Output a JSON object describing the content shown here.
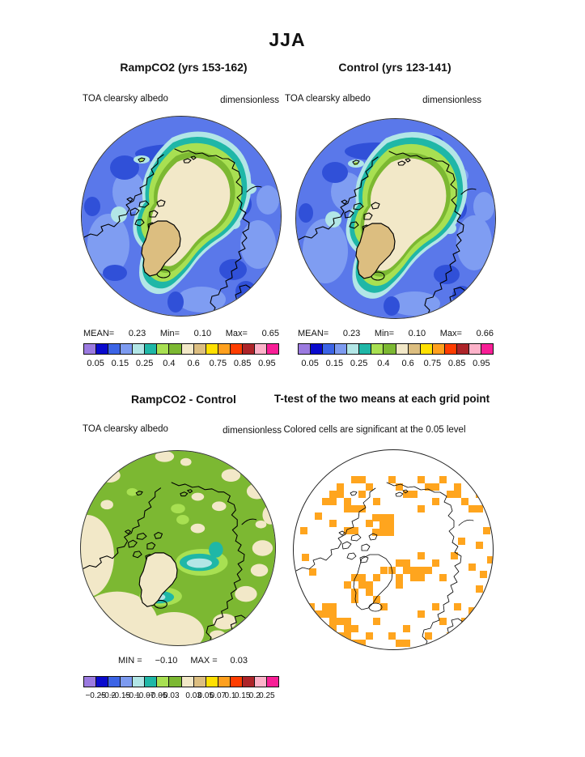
{
  "title": "JJA",
  "panels": {
    "ramp": {
      "title": "RampCO2 (yrs 153-162)",
      "var_label": "TOA clearsky albedo",
      "units": "dimensionless",
      "stats": [
        {
          "k": "MEAN=",
          "v": "0.23"
        },
        {
          "k": "Min=",
          "v": "0.10"
        },
        {
          "k": "Max=",
          "v": "0.65"
        }
      ]
    },
    "control": {
      "title": "Control (yrs 123-141)",
      "var_label": "TOA clearsky albedo",
      "units": "dimensionless",
      "stats": [
        {
          "k": "MEAN=",
          "v": "0.23"
        },
        {
          "k": "Min=",
          "v": "0.10"
        },
        {
          "k": "Max=",
          "v": "0.66"
        }
      ]
    },
    "diff": {
      "title": "RampCO2 - Control",
      "var_label": "TOA clearsky albedo",
      "units": "dimensionless",
      "stats": [
        {
          "k": "MIN =",
          "v": "−0.10"
        },
        {
          "k": "MAX =",
          "v": "0.03"
        }
      ]
    },
    "ttest": {
      "title": "T-test of the two means at each grid point",
      "note": "Colored cells are significant at the 0.05 level"
    }
  },
  "colorbars": {
    "albedo": {
      "colors": [
        "#9b7ae0",
        "#0a0acd",
        "#3c64e6",
        "#7d9bf0",
        "#b2e6e6",
        "#1fb7a7",
        "#a8e052",
        "#7cb832",
        "#f2e8c8",
        "#dcbe80",
        "#ffe000",
        "#ffa01e",
        "#ff3d00",
        "#ad2429",
        "#fdb2c9",
        "#f81e96"
      ],
      "ticks": [
        {
          "f": 0.0625,
          "t": "0.05"
        },
        {
          "f": 0.1875,
          "t": "0.15"
        },
        {
          "f": 0.3125,
          "t": "0.25"
        },
        {
          "f": 0.4375,
          "t": "0.4"
        },
        {
          "f": 0.5625,
          "t": "0.6"
        },
        {
          "f": 0.6875,
          "t": "0.75"
        },
        {
          "f": 0.8125,
          "t": "0.85"
        },
        {
          "f": 0.9375,
          "t": "0.95"
        }
      ]
    },
    "diff": {
      "colors": [
        "#9b7ae0",
        "#0a0acd",
        "#3c64e6",
        "#7d9bf0",
        "#b2e6e6",
        "#1fb7a7",
        "#a8e052",
        "#7cb832",
        "#f2e8c8",
        "#dcbe80",
        "#ffe000",
        "#ffa01e",
        "#ff3d00",
        "#ad2429",
        "#fdb2c9",
        "#f81e96"
      ],
      "ticks": [
        {
          "f": 0.0625,
          "t": "−0.25"
        },
        {
          "f": 0.125,
          "t": "−0.2"
        },
        {
          "f": 0.1875,
          "t": "−0.15"
        },
        {
          "f": 0.25,
          "t": "−0.1"
        },
        {
          "f": 0.3125,
          "t": "−0.07"
        },
        {
          "f": 0.375,
          "t": "−0.05"
        },
        {
          "f": 0.4375,
          "t": "−0.03"
        },
        {
          "f": 0.5625,
          "t": "0.03"
        },
        {
          "f": 0.625,
          "t": "0.05"
        },
        {
          "f": 0.6875,
          "t": "0.07"
        },
        {
          "f": 0.75,
          "t": "0.1"
        },
        {
          "f": 0.8125,
          "t": "0.15"
        },
        {
          "f": 0.875,
          "t": "0.2"
        },
        {
          "f": 0.9375,
          "t": "0.25"
        }
      ]
    }
  },
  "colors": {
    "ocean-mid": "#5a78ea",
    "ocean-light": "#7f9df2",
    "ocean-dark": "#3050d8",
    "palecyan": "#b2e6e6",
    "teal": "#1fb7a7",
    "ltgreen": "#a8e052",
    "olive": "#7cb832",
    "beige": "#f2e8c8",
    "tan": "#dcbe80",
    "sig-orange": "#ffa51e",
    "edge": "#333333"
  },
  "chart_data": [
    {
      "type": "heatmap",
      "title": "RampCO2 (yrs 153-162)",
      "variable": "TOA clearsky albedo",
      "units": "dimensionless",
      "projection": "north polar stereographic",
      "season": "JJA",
      "stats": {
        "mean": 0.23,
        "min": 0.1,
        "max": 0.65
      },
      "colorbar_levels": [
        0.05,
        0.1,
        0.15,
        0.2,
        0.25,
        0.3,
        0.4,
        0.5,
        0.6,
        0.7,
        0.75,
        0.8,
        0.85,
        0.9,
        0.95
      ],
      "labeled_levels": [
        0.05,
        0.15,
        0.25,
        0.4,
        0.6,
        0.75,
        0.85,
        0.95
      ],
      "legend_position": "below"
    },
    {
      "type": "heatmap",
      "title": "Control (yrs 123-141)",
      "variable": "TOA clearsky albedo",
      "units": "dimensionless",
      "projection": "north polar stereographic",
      "season": "JJA",
      "stats": {
        "mean": 0.23,
        "min": 0.1,
        "max": 0.66
      },
      "colorbar_levels": [
        0.05,
        0.1,
        0.15,
        0.2,
        0.25,
        0.3,
        0.4,
        0.5,
        0.6,
        0.7,
        0.75,
        0.8,
        0.85,
        0.9,
        0.95
      ],
      "labeled_levels": [
        0.05,
        0.15,
        0.25,
        0.4,
        0.6,
        0.75,
        0.85,
        0.95
      ],
      "legend_position": "below"
    },
    {
      "type": "heatmap",
      "title": "RampCO2 - Control",
      "variable": "TOA clearsky albedo",
      "units": "dimensionless",
      "projection": "north polar stereographic",
      "season": "JJA",
      "stats": {
        "min": -0.1,
        "max": 0.03
      },
      "colorbar_levels": [
        -0.25,
        -0.2,
        -0.15,
        -0.1,
        -0.07,
        -0.05,
        -0.03,
        0.03,
        0.05,
        0.07,
        0.1,
        0.15,
        0.2,
        0.25
      ],
      "legend_position": "below"
    },
    {
      "type": "heatmap",
      "title": "T-test of the two means at each grid point",
      "annotation": "Colored cells are significant at the 0.05 level",
      "projection": "north polar stereographic",
      "season": "JJA",
      "significance_level": 0.05,
      "significant_color": "#ffa51e"
    }
  ]
}
